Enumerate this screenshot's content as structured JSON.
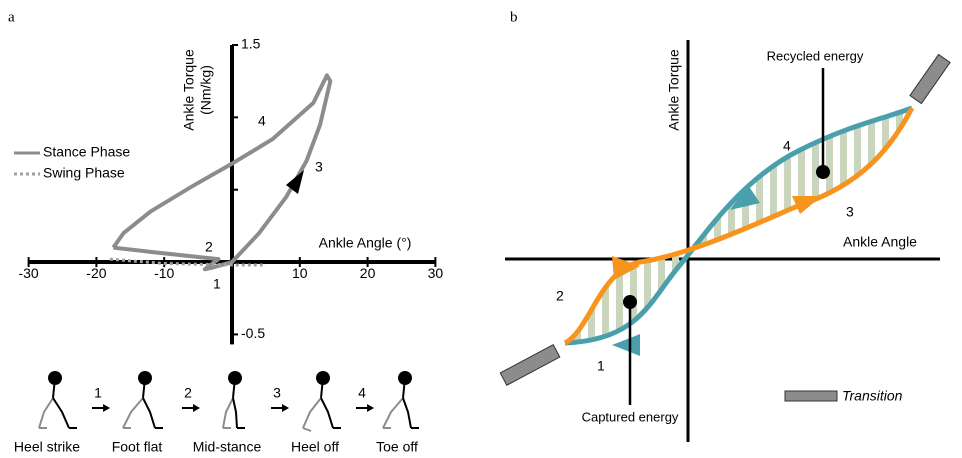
{
  "chart_data": [
    {
      "type": "line",
      "label": "a",
      "xlabel": "Ankle Angle (°)",
      "ylabel": [
        "Ankle Torque",
        "(Nm/kg)"
      ],
      "xlim": [
        -30,
        30
      ],
      "ylim": [
        -0.5,
        1.5
      ],
      "xticks": [
        -30,
        -20,
        -10,
        10,
        20,
        30
      ],
      "yticks": [
        -0.5,
        1.5
      ],
      "yminorticks": [
        0.5,
        1.0
      ],
      "series": [
        {
          "name": "Stance Phase",
          "color": "#8c8c8c",
          "dashed": false,
          "x": [
            -17.5,
            -12,
            -6,
            -2,
            -4,
            -3,
            0,
            4,
            8,
            11,
            13,
            14.5,
            14,
            12,
            6,
            0,
            -6,
            -12,
            -16,
            -17.5
          ],
          "values": [
            0.1,
            0.07,
            0.04,
            0.02,
            -0.05,
            -0.04,
            0,
            0.2,
            0.45,
            0.7,
            0.95,
            1.25,
            1.29,
            1.1,
            0.85,
            0.68,
            0.52,
            0.35,
            0.2,
            0.1
          ]
        },
        {
          "name": "Swing Phase",
          "color": "#a0a0a0",
          "dashed": true,
          "x": [
            -18,
            -10,
            0,
            5
          ],
          "values": [
            0.02,
            -0.01,
            -0.02,
            -0.02
          ]
        }
      ],
      "annotations": [
        "1",
        "2",
        "3",
        "4"
      ],
      "gait_phases": [
        "Heel strike",
        "Foot flat",
        "Mid-stance",
        "Heel off",
        "Toe off"
      ],
      "gait_steps": [
        "1",
        "2",
        "3",
        "4"
      ]
    },
    {
      "type": "diagram",
      "label": "b",
      "xlabel": "Ankle Angle",
      "ylabel": "Ankle Torque",
      "callouts": [
        "Recycled energy",
        "Captured energy"
      ],
      "phase_numbers": [
        "4",
        "3",
        "2",
        "1"
      ],
      "legend": "Transition"
    }
  ]
}
